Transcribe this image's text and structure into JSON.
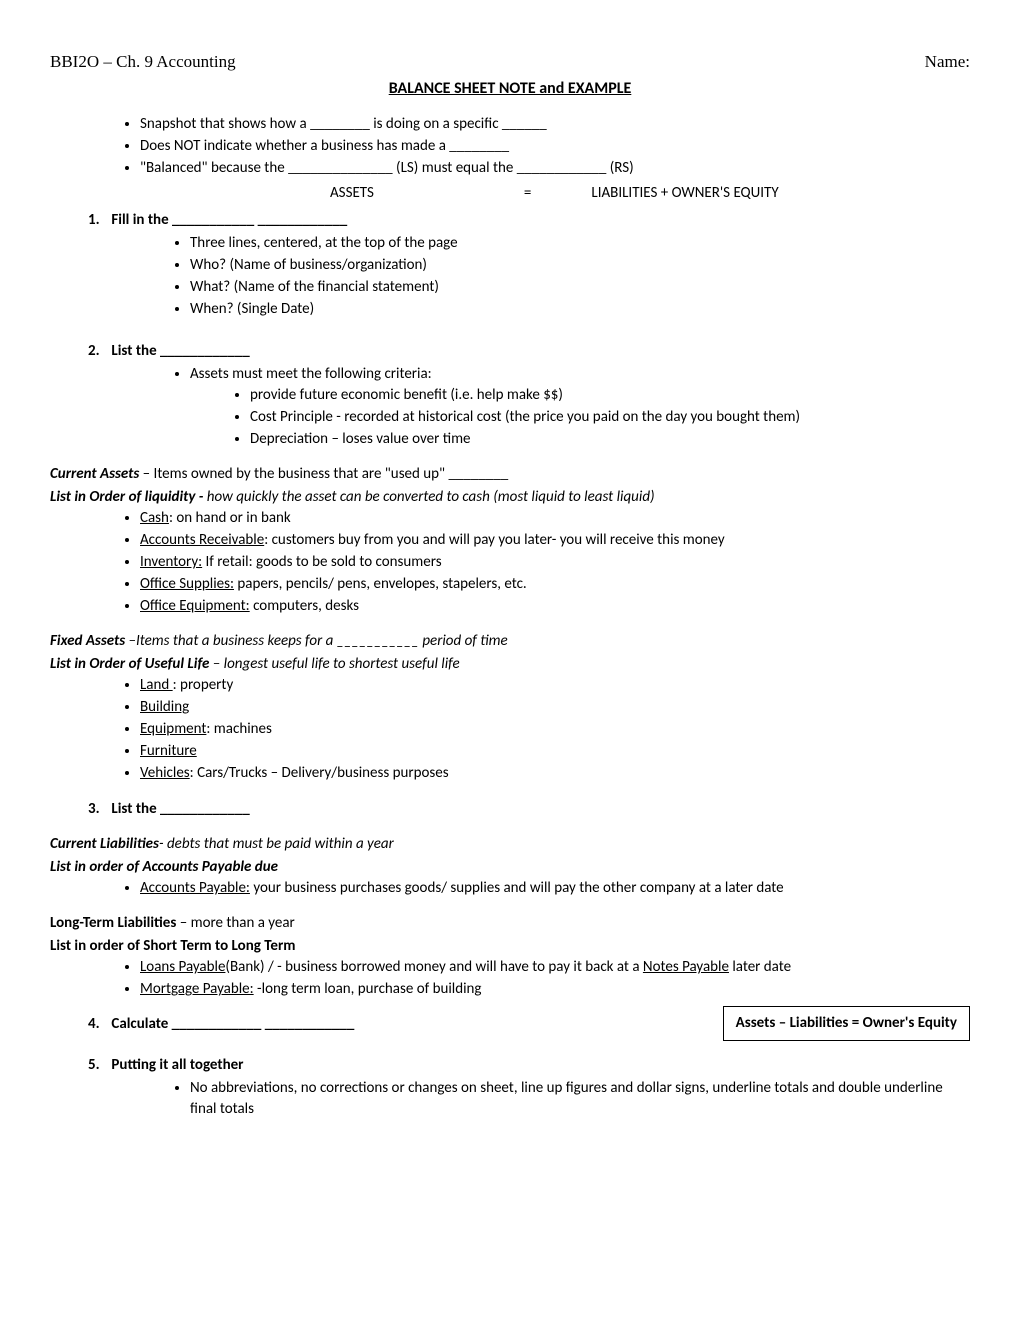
{
  "header": {
    "left": "BBI2O – Ch. 9 Accounting",
    "right": "Name:"
  },
  "title": "BALANCE SHEET NOTE and EXAMPLE",
  "intro_bullets": [
    "Snapshot that shows how a ________ is doing on a specific ______",
    "Does NOT indicate whether a business has made a ________",
    "\"Balanced\" because the ______________ (LS) must equal the ____________ (RS)"
  ],
  "equation": {
    "left": "ASSETS",
    "mid": "=",
    "right": "LIABILITIES + OWNER'S EQUITY"
  },
  "step1": {
    "num": "1.",
    "label": "Fill in the ___________  ____________",
    "bullets": [
      "Three lines, centered, at the top of the page",
      "Who? (Name of business/organization)",
      "What? (Name of the financial statement)",
      "When? (Single Date)"
    ]
  },
  "step2": {
    "num": "2.",
    "label": "List the ____________",
    "lead": "Assets must meet the following criteria:",
    "criteria": [
      "provide future economic benefit (i.e. help make $$)",
      "Cost Principle - recorded at historical cost (the price you paid on the day you bought them)",
      "Depreciation – loses value over time"
    ]
  },
  "current_assets": {
    "head_bold": "Current Assets",
    "head_rest": " – Items owned by the business that are \"used up\" ________",
    "liq_bold": "List in Order of liquidity - ",
    "liq_rest": "how quickly the asset can be converted to cash (most liquid to least liquid)",
    "items": [
      {
        "u": "Cash",
        "rest": ": on hand or in bank"
      },
      {
        "u": "Accounts Receivable",
        "rest": ": customers buy from you and will pay you later- you will receive this money"
      },
      {
        "u": "Inventory:",
        "rest": " If retail: goods to be sold to consumers"
      },
      {
        "u": "Office Supplies:",
        "rest": " papers, pencils/ pens, envelopes, stapelers, etc."
      },
      {
        "u": "Office Equipment:",
        "rest": " computers, desks"
      }
    ]
  },
  "fixed_assets": {
    "head_bold": "Fixed Assets",
    "head_rest": " –Items that a business keeps for a ___________ period of time",
    "life_bold": "List in Order of Useful Life",
    "life_rest": " – longest useful life to shortest useful life",
    "items": [
      {
        "u": "Land ",
        "rest": ": property"
      },
      {
        "u": "Building",
        "rest": ""
      },
      {
        "u": "Equipment",
        "rest": ": machines"
      },
      {
        "u": "Furniture",
        "rest": ""
      },
      {
        "u": "Vehicles",
        "rest": ": Cars/Trucks – Delivery/business purposes"
      }
    ]
  },
  "step3": {
    "num": "3.",
    "label": "List the ____________"
  },
  "current_liab": {
    "head_bold": "Current Liabilities",
    "head_rest": "- debts that must be paid within a year",
    "sub": "List in order of Accounts Payable due",
    "items": [
      {
        "u": "Accounts Payable:",
        "rest": " your business purchases goods/ supplies and will pay the other company at a later date"
      }
    ]
  },
  "long_liab": {
    "head_bold": "Long-Term Liabilities",
    "head_rest": " – more than a year",
    "sub": "List in order of Short Term to Long Term",
    "items": [
      {
        "u1": "Loans Payable",
        "mid1": "(Bank) / - business borrowed money and will have to pay it back at a ",
        "u2": "Notes Payable",
        "mid2": "  later date"
      },
      {
        "u1": "Mortgage Payable:",
        "mid1": " -long term loan, purchase of building",
        "u2": "",
        "mid2": ""
      }
    ]
  },
  "step4": {
    "num": "4.",
    "label": "Calculate ____________  ____________",
    "box": "Assets – Liabilities = Owner's Equity"
  },
  "step5": {
    "num": "5.",
    "label": "Putting it all together",
    "bullets": [
      "No abbreviations, no corrections or changes on sheet, line up figures and dollar signs, underline totals and double underline final totals"
    ]
  }
}
